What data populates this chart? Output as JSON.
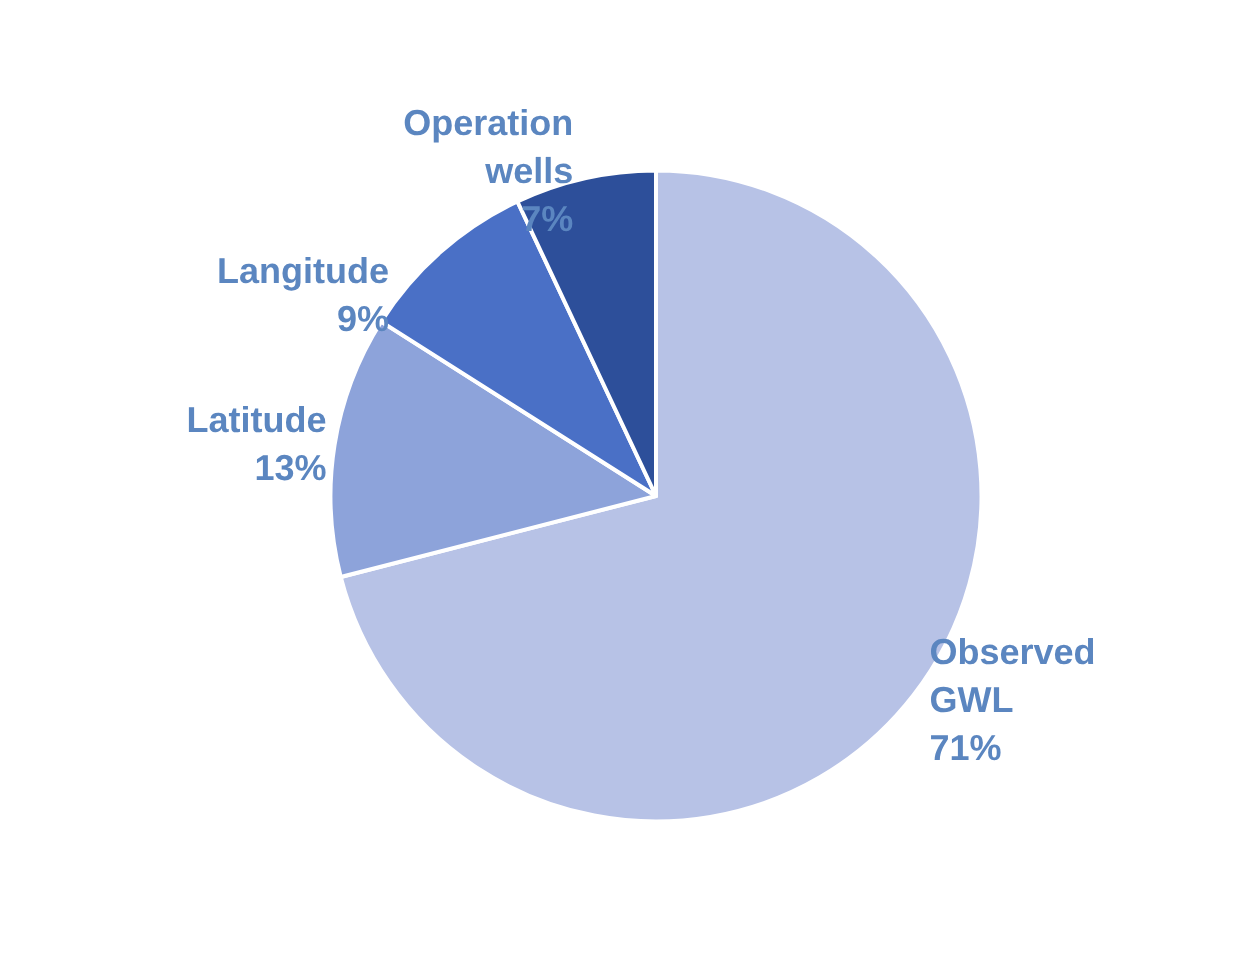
{
  "chart_data": {
    "type": "pie",
    "categories": [
      "Observed GWL",
      "Latitude",
      "Langitude",
      "Operation wells"
    ],
    "values": [
      71,
      13,
      9,
      7
    ],
    "colors": [
      "#b7c2e6",
      "#8da3da",
      "#4a70c6",
      "#2d4f9a"
    ],
    "value_labels": [
      "71%",
      "13%",
      "9%",
      "7%"
    ]
  }
}
